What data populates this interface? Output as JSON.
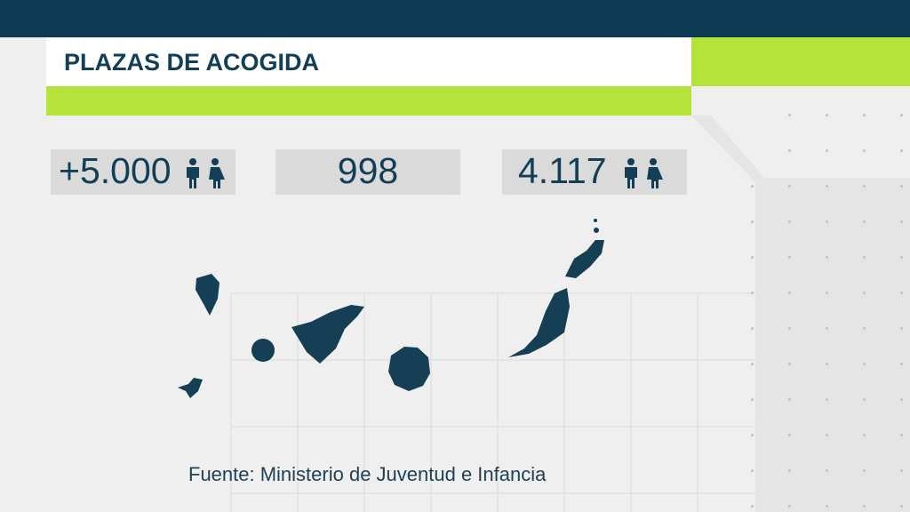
{
  "header": {
    "title": "PLAZAS DE ACOGIDA"
  },
  "stats": [
    "+5.000",
    "998",
    "4.117"
  ],
  "source": "Fuente: Ministerio de Juventud e Infancia"
}
